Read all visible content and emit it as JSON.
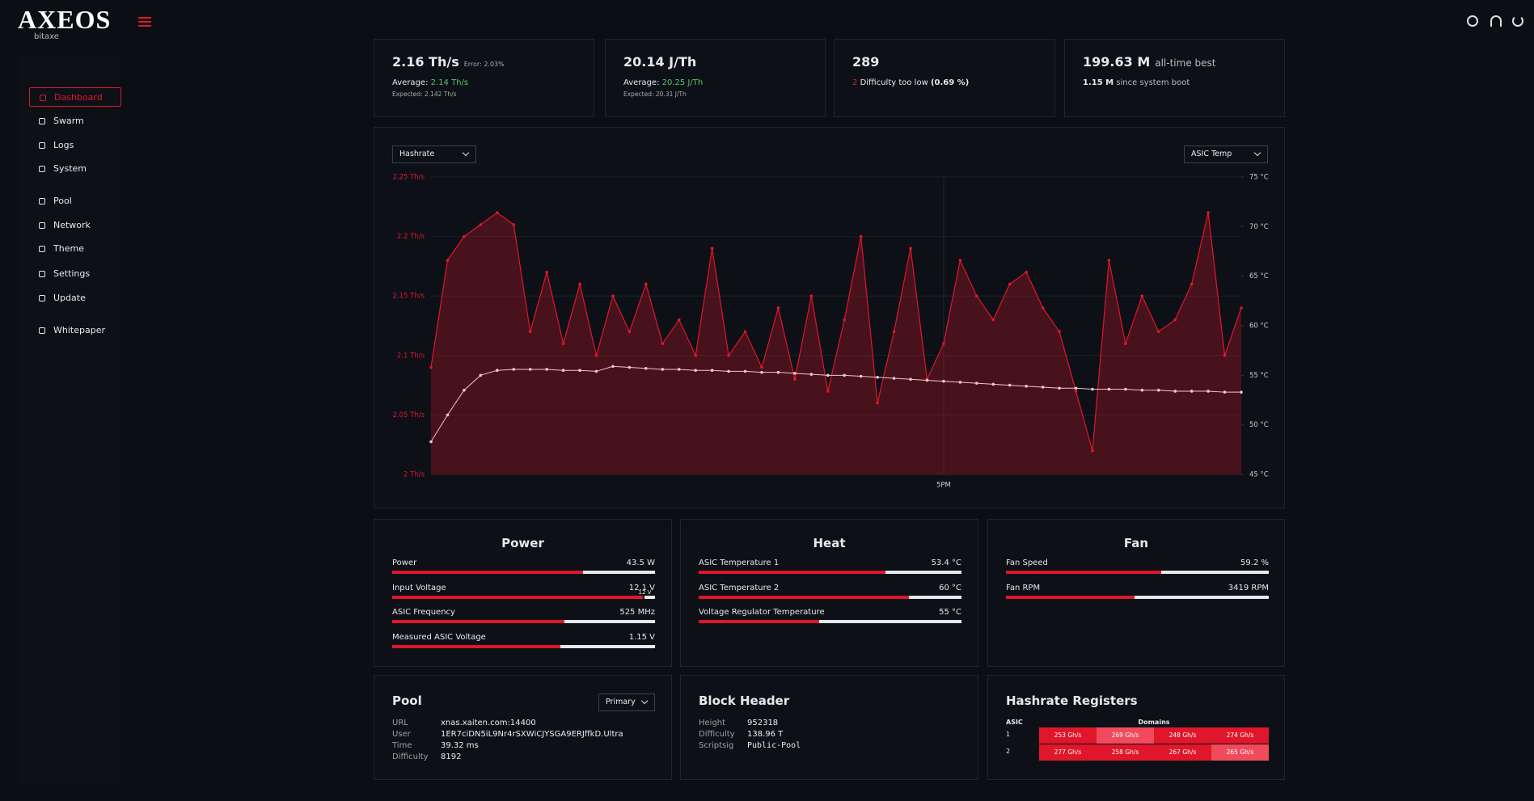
{
  "header": {
    "logo": "AXEOS",
    "logo_sub": "bitaxe"
  },
  "sidebar": {
    "items": [
      "Dashboard",
      "Swarm",
      "Logs",
      "System",
      "Pool",
      "Network",
      "Theme",
      "Settings",
      "Update",
      "Whitepaper"
    ],
    "active": 0
  },
  "stats": [
    {
      "value": "2.16 Th/s",
      "note": "Error: 2.03%",
      "avg_label": "Average:",
      "avg": "2.14 Th/s",
      "expected": "Expected: 2.142 Th/s"
    },
    {
      "value": "20.14 J/Th",
      "avg_label": "Average:",
      "avg": "20.25 J/Th",
      "expected": "Expected: 20.31 J/Th"
    },
    {
      "value": "289",
      "count": "2",
      "count_label": "Difficulty too low",
      "count_pct": "(0.69 %)"
    },
    {
      "value": "199.63 M",
      "note": "all-time best",
      "session": "1.15 M",
      "session_label": "since system boot"
    }
  ],
  "chart_data": {
    "type": "line",
    "categories": [
      null,
      null,
      null,
      null,
      null,
      null,
      null,
      null,
      null,
      null,
      null,
      null,
      null,
      null,
      null,
      null,
      null,
      null,
      null,
      null,
      null,
      null,
      null,
      null,
      null,
      null,
      null,
      null,
      null,
      null,
      null,
      "5PM",
      null,
      null,
      null,
      null,
      null,
      null,
      null,
      null,
      null,
      null,
      null,
      null,
      null,
      null,
      null,
      null,
      null,
      null
    ],
    "series": [
      {
        "name": "Hashrate",
        "color": "#e0162b",
        "values": [
          2.09,
          2.18,
          2.2,
          2.21,
          2.22,
          2.21,
          2.12,
          2.17,
          2.11,
          2.16,
          2.1,
          2.15,
          2.12,
          2.16,
          2.11,
          2.13,
          2.1,
          2.19,
          2.1,
          2.12,
          2.09,
          2.14,
          2.08,
          2.15,
          2.07,
          2.13,
          2.2,
          2.06,
          2.12,
          2.19,
          2.08,
          2.11,
          2.18,
          2.15,
          2.13,
          2.16,
          2.17,
          2.14,
          2.12,
          2.07,
          2.02,
          2.18,
          2.11,
          2.15,
          2.12,
          2.13,
          2.16,
          2.22,
          2.1,
          2.14
        ]
      },
      {
        "name": "ASIC Temp",
        "color": "#f0c6cb",
        "axis": "y2",
        "values": [
          48.3,
          51.0,
          53.5,
          55.0,
          55.5,
          55.6,
          55.6,
          55.6,
          55.5,
          55.5,
          55.4,
          55.9,
          55.8,
          55.7,
          55.6,
          55.6,
          55.5,
          55.5,
          55.4,
          55.4,
          55.3,
          55.3,
          55.2,
          55.1,
          55.0,
          55.0,
          54.9,
          54.8,
          54.7,
          54.6,
          54.5,
          54.4,
          54.3,
          54.2,
          54.1,
          54.0,
          53.9,
          53.8,
          53.7,
          53.7,
          53.6,
          53.6,
          53.6,
          53.5,
          53.5,
          53.4,
          53.4,
          53.4,
          53.3,
          53.3
        ]
      }
    ],
    "ylim": [
      2,
      2.25
    ],
    "yticks": [
      {
        "value": 2,
        "label": "2 Th/s"
      },
      {
        "value": 2.05,
        "label": "2.05 Th/s"
      },
      {
        "value": 2.1,
        "label": "2.1 Th/s"
      },
      {
        "value": 2.15,
        "label": "2.15 Th/s"
      },
      {
        "value": 2.2,
        "label": "2.2 Th/s"
      },
      {
        "value": 2.25,
        "label": "2.25 Th/s"
      }
    ],
    "y2lim": [
      45,
      75
    ],
    "y2ticks": [
      {
        "value": 45,
        "label": "45 °C"
      },
      {
        "value": 50,
        "label": "50 °C"
      },
      {
        "value": 55,
        "label": "55 °C"
      },
      {
        "value": 60,
        "label": "60 °C"
      },
      {
        "value": 65,
        "label": "65 °C"
      },
      {
        "value": 70,
        "label": "70 °C"
      },
      {
        "value": 75,
        "label": "75 °C"
      }
    ],
    "grid": true
  },
  "panels": [
    {
      "title": "Power",
      "rows": [
        {
          "label": "Power",
          "value": 43.5,
          "value_label": "43.5 W",
          "range": [
            0,
            60
          ]
        },
        {
          "label": "Input Voltage",
          "value": 12.1,
          "value_label": "12.1 V",
          "range": [
            0,
            12.6
          ],
          "marker": {
            "value": 12,
            "label": "12 V"
          }
        },
        {
          "label": "ASIC Frequency",
          "value": 525,
          "value_label": "525 MHz",
          "range": [
            0,
            800
          ]
        },
        {
          "label": "Measured ASIC Voltage",
          "value": 1.15,
          "value_label": "1.15 V",
          "range": [
            0,
            1.8
          ]
        }
      ]
    },
    {
      "title": "Heat",
      "rows": [
        {
          "label": "ASIC Temperature 1",
          "value": 53.4,
          "value_label": "53.4 °C",
          "range": [
            0,
            75
          ]
        },
        {
          "label": "ASIC Temperature 2",
          "value": 60,
          "value_label": "60 °C",
          "range": [
            0,
            75
          ]
        },
        {
          "label": "Voltage Regulator Temperature",
          "value": 55,
          "value_label": "55 °C",
          "range": [
            0,
            120
          ]
        }
      ]
    },
    {
      "title": "Fan",
      "rows": [
        {
          "label": "Fan Speed",
          "value": 59.2,
          "value_label": "59.2 %",
          "range": [
            0,
            100
          ]
        },
        {
          "label": "Fan RPM",
          "value": 3419,
          "value_label": "3419 RPM",
          "range": [
            0,
            7000
          ]
        }
      ]
    }
  ],
  "pool": {
    "title": "Pool",
    "select": "Primary",
    "fields": [
      [
        "URL",
        "xnas.xaiten.com:14400"
      ],
      [
        "User",
        "1ER7ciDN5iL9Nr4rSXWiCJYSGA9ERJffkD.Ultra"
      ],
      [
        "Time",
        "39.32 ms"
      ],
      [
        "Difficulty",
        "8192"
      ]
    ]
  },
  "block_header": {
    "title": "Block Header",
    "fields": [
      [
        "Height",
        "952318"
      ],
      [
        "Difficulty",
        "138.96 T"
      ],
      [
        "Scriptsig",
        "Public-Pool"
      ]
    ]
  },
  "registers": {
    "title": "Hashrate Registers",
    "col_head": "ASIC",
    "group_head": "Domains",
    "rows": [
      {
        "asic": "1",
        "cells": [
          "253 Gh/s",
          "269 Gh/s",
          "248 Gh/s",
          "274 Gh/s"
        ]
      },
      {
        "asic": "2",
        "cells": [
          "277 Gh/s",
          "258 Gh/s",
          "267 Gh/s",
          "265 Gh/s"
        ]
      }
    ]
  }
}
